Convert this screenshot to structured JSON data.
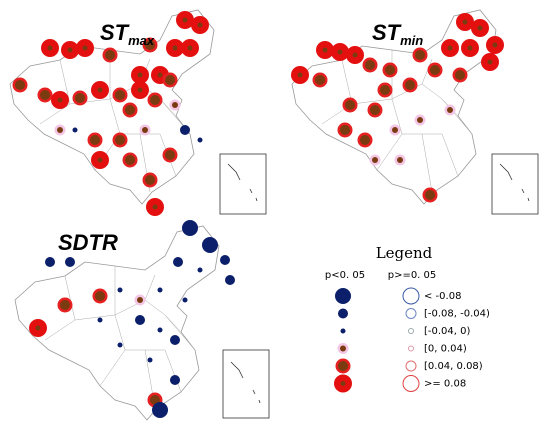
{
  "panels": [
    {
      "title": "ST",
      "subscript": "max"
    },
    {
      "title": "ST",
      "subscript": "min"
    },
    {
      "title": "SDTR"
    }
  ],
  "legend": {
    "title": "Legend",
    "columns": [
      "p<0. 05",
      "p>=0. 05"
    ],
    "rows": [
      "< -0.08",
      "[-0.08, -0.04)",
      "[-0.04, 0)",
      "[0, 0.04)",
      "[0.04, 0.08)",
      ">= 0.08"
    ]
  }
}
